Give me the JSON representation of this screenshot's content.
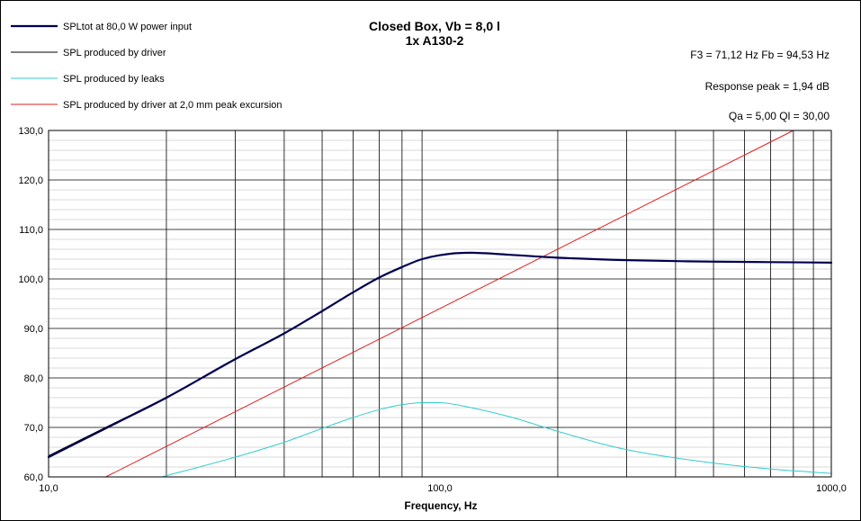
{
  "chart_data": {
    "type": "line",
    "title": "Closed Box, Vb = 8,0 l",
    "subtitle": "1x A130-2",
    "xlabel": "Frequency, Hz",
    "ylabel": "",
    "x_scale": "log",
    "xlim": [
      10,
      1000
    ],
    "ylim": [
      60,
      130
    ],
    "x_ticks": [
      10,
      100,
      1000
    ],
    "x_tick_labels": [
      "10,0",
      "100,0",
      "1000,0"
    ],
    "y_ticks": [
      60,
      70,
      80,
      90,
      100,
      110,
      120,
      130
    ],
    "y_tick_labels": [
      "60,0",
      "70,0",
      "80,0",
      "90,0",
      "100,0",
      "110,0",
      "120,0",
      "130,0"
    ],
    "grid": "major and minor",
    "legend_position": "top-left",
    "annotations": [
      "F3 = 71,12 Hz  Fb = 94,53 Hz",
      "Response peak = 1,94 dB",
      "Qa = 5,00  Ql = 30,00"
    ],
    "series": [
      {
        "name": "SPLtot at 80,0 W power input",
        "color": "#000050",
        "stroke_width": 2.2,
        "x": [
          10,
          15,
          20,
          30,
          40,
          50,
          60,
          70,
          80,
          90,
          100,
          110,
          120,
          130,
          150,
          200,
          300,
          500,
          700,
          1000
        ],
        "y": [
          64.0,
          71.0,
          76.0,
          83.8,
          89.0,
          93.5,
          97.3,
          100.3,
          102.4,
          104.0,
          104.8,
          105.2,
          105.3,
          105.2,
          104.9,
          104.3,
          103.8,
          103.5,
          103.4,
          103.3
        ]
      },
      {
        "name": "SPL produced by driver",
        "color": "#000000",
        "stroke_width": 0.9,
        "x": [
          10,
          15,
          20,
          30,
          40,
          50,
          60,
          70,
          80,
          90,
          100,
          110,
          120,
          130,
          150,
          200,
          300,
          500,
          700,
          1000
        ],
        "y": [
          64.3,
          71.2,
          76.1,
          83.8,
          89.0,
          93.5,
          97.3,
          100.3,
          102.4,
          104.0,
          104.8,
          105.2,
          105.3,
          105.2,
          104.9,
          104.3,
          103.8,
          103.5,
          103.4,
          103.3
        ]
      },
      {
        "name": "SPL produced by leaks",
        "color": "#33cccc",
        "stroke_width": 1,
        "x": [
          19.5,
          30,
          40,
          50,
          60,
          70,
          80,
          90,
          100,
          110,
          120,
          150,
          200,
          300,
          500,
          700,
          1000
        ],
        "y": [
          60.0,
          64.0,
          67.0,
          69.8,
          72.0,
          73.6,
          74.6,
          75.0,
          75.0,
          74.6,
          74.0,
          72.2,
          69.2,
          65.5,
          62.8,
          61.6,
          60.7
        ]
      },
      {
        "name": "SPL produced by driver at 2,0 mm peak excursion",
        "color": "#dd2222",
        "stroke_width": 1,
        "x": [
          14,
          800
        ],
        "y": [
          60.0,
          130.0
        ]
      }
    ]
  }
}
